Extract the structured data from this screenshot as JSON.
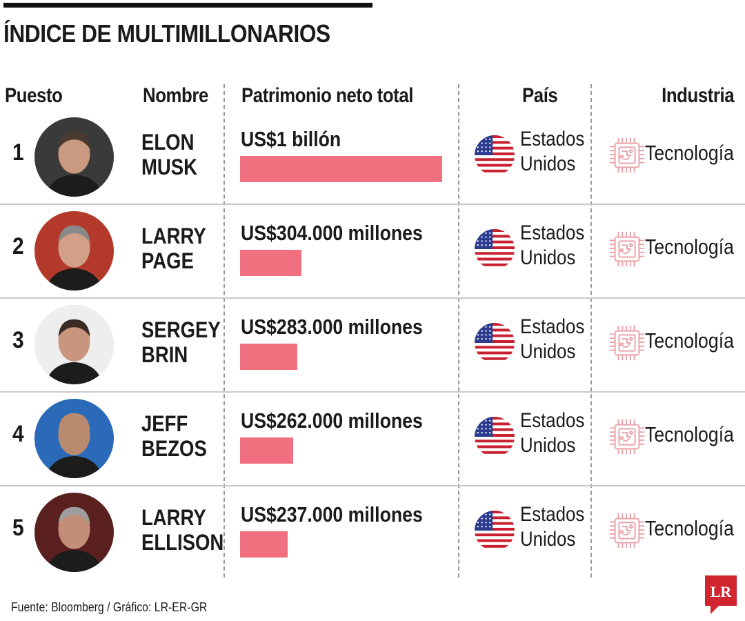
{
  "title": "ÍNDICE DE MULTIMILLONARIOS",
  "headers": {
    "rank": "Puesto",
    "name": "Nombre",
    "net_worth": "Patrimonio neto total",
    "country": "País",
    "industry": "Industria"
  },
  "chart_data": {
    "type": "bar",
    "title": "ÍNDICE DE MULTIMILLONARIOS",
    "categories": [
      "ELON MUSK",
      "LARRY PAGE",
      "SERGEY BRIN",
      "JEFF BEZOS",
      "LARRY ELLISON"
    ],
    "values": [
      1000000,
      304000,
      283000,
      262000,
      237000
    ],
    "unit": "US$ millones",
    "xlabel": "",
    "ylabel": "",
    "rows": [
      {
        "rank": "1",
        "name_line1": "ELON",
        "name_line2": "MUSK",
        "value_label": "US$1 billón",
        "value": 1000000,
        "country_line1": "Estados",
        "country_line2": "Unidos",
        "industry": "Tecnología"
      },
      {
        "rank": "2",
        "name_line1": "LARRY",
        "name_line2": "PAGE",
        "value_label": "US$304.000 millones",
        "value": 304000,
        "country_line1": "Estados",
        "country_line2": "Unidos",
        "industry": "Tecnología"
      },
      {
        "rank": "3",
        "name_line1": "SERGEY",
        "name_line2": "BRIN",
        "value_label": "US$283.000 millones",
        "value": 283000,
        "country_line1": "Estados",
        "country_line2": "Unidos",
        "industry": "Tecnología"
      },
      {
        "rank": "4",
        "name_line1": "JEFF",
        "name_line2": "BEZOS",
        "value_label": "US$262.000 millones",
        "value": 262000,
        "country_line1": "Estados",
        "country_line2": "Unidos",
        "industry": "Tecnología"
      },
      {
        "rank": "5",
        "name_line1": "LARRY",
        "name_line2": "ELLISON",
        "value_label": "US$237.000 millones",
        "value": 237000,
        "country_line1": "Estados",
        "country_line2": "Unidos",
        "industry": "Tecnología"
      }
    ]
  },
  "colors": {
    "bar": "#f07080",
    "chip_icon": "#e9a3a8",
    "logo": "#d0242f"
  },
  "icons": {
    "photo": "person-photo",
    "flag": "us-flag-icon",
    "industry": "chip-icon",
    "logo": "lr-logo"
  },
  "footer": "Fuente: Bloomberg / Gráfico: LR-ER-GR",
  "logo_text": "LR"
}
